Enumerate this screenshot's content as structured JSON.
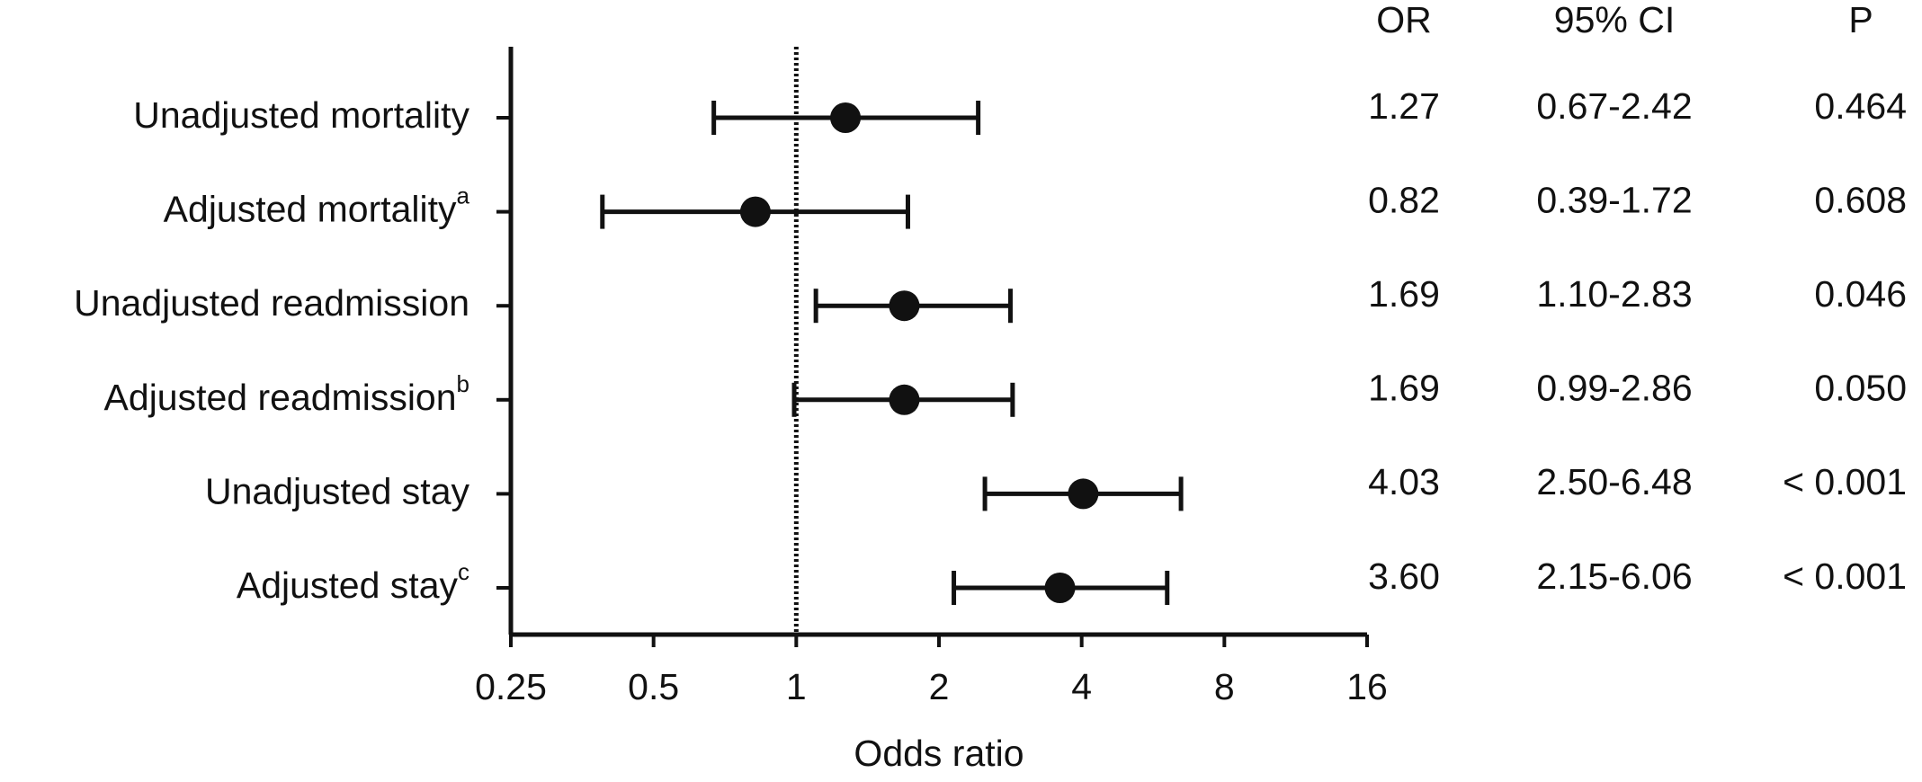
{
  "chart_data": {
    "type": "forest",
    "categories": [
      "Unadjusted mortality",
      "Adjusted mortality",
      "Unadjusted readmission",
      "Adjusted readmission",
      "Unadjusted stay",
      "Adjusted stay"
    ],
    "superscripts": [
      null,
      "a",
      null,
      "b",
      null,
      "c"
    ],
    "values": [
      1.27,
      0.82,
      1.69,
      1.69,
      4.03,
      3.6
    ],
    "value_labels": [
      "1.27",
      "0.82",
      "1.69",
      "1.69",
      "4.03",
      "3.60"
    ],
    "ci_lower": [
      0.67,
      0.39,
      1.1,
      0.99,
      2.5,
      2.15
    ],
    "ci_upper": [
      2.42,
      1.72,
      2.83,
      2.86,
      6.48,
      6.06
    ],
    "ci_labels": [
      "0.67-2.42",
      "0.39-1.72",
      "1.10-2.83",
      "0.99-2.86",
      "2.50-6.48",
      "2.15-6.06"
    ],
    "p_labels": [
      "0.464",
      "0.608",
      "0.046",
      "0.050",
      "< 0.001",
      "< 0.001"
    ],
    "column_headers": [
      "OR",
      "95% CI",
      "P"
    ],
    "x_label": "Odds ratio",
    "xscale": "log",
    "xlim": [
      0.25,
      16
    ],
    "xticks": [
      0.25,
      0.5,
      1,
      2,
      4,
      8,
      16
    ],
    "reference_line": 1,
    "color": "#111111"
  }
}
